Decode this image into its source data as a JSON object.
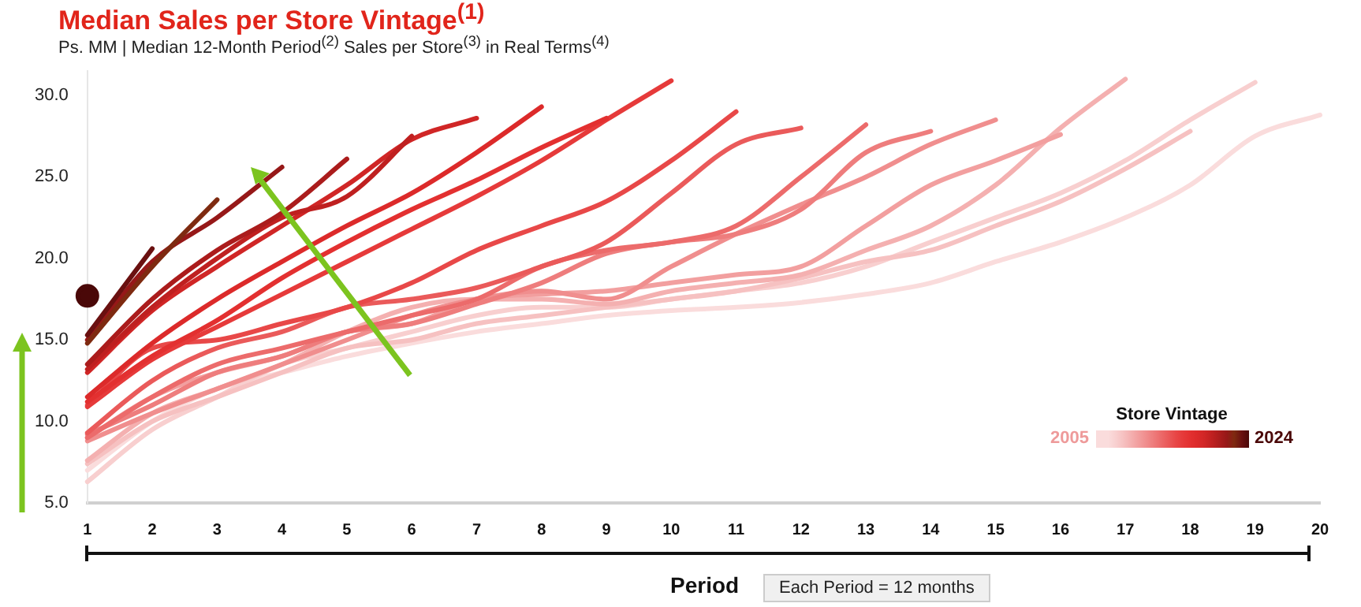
{
  "chart_data": {
    "type": "line",
    "title": "Median Sales per Store Vintage$^{(1)}$",
    "subtitle": "Ps. MM | Median 12-Month Period$^{(2)}$ Sales per Store$^{(3)}$ in Real Terms$^{(4)}$",
    "xlabel": "Period",
    "annotations": [
      "Each Period = 12 months"
    ],
    "legend_title": "Store Vintage",
    "xlim": [
      1,
      20
    ],
    "xticks": [
      1,
      2,
      3,
      4,
      5,
      6,
      7,
      8,
      9,
      10,
      11,
      12,
      13,
      14,
      15,
      16,
      17,
      18,
      19,
      20
    ],
    "ylim": [
      5,
      31.5
    ],
    "yticks": [
      {
        "value": 5,
        "label": "5.0"
      },
      {
        "value": 10,
        "label": "10.0"
      },
      {
        "value": 15,
        "label": "15.0"
      },
      {
        "value": 20,
        "label": "20.0"
      },
      {
        "value": 25,
        "label": "25.0"
      },
      {
        "value": 30,
        "label": "30.0"
      }
    ],
    "grid": false,
    "legend": "bottom right",
    "marker": "none",
    "series": [
      {
        "name": "2005",
        "color": "#fadcdc",
        "x": [
          1,
          2,
          3,
          4,
          5,
          6,
          7,
          8,
          9,
          10,
          11,
          12,
          13,
          14,
          15,
          16,
          17,
          18,
          19,
          20
        ],
        "values": [
          7.0,
          10.0,
          12.0,
          13.0,
          14.0,
          14.8,
          15.5,
          16.0,
          16.5,
          16.8,
          17.0,
          17.3,
          17.8,
          18.5,
          19.8,
          21.0,
          22.5,
          24.5,
          27.5,
          28.8
        ]
      },
      {
        "color": "#f8cfcf",
        "x": [
          1,
          2,
          3,
          4,
          5,
          6,
          7,
          8,
          9,
          10,
          11,
          12,
          13,
          14,
          15,
          16,
          17,
          18,
          19
        ],
        "values": [
          6.3,
          9.5,
          11.5,
          13.5,
          14.5,
          15.5,
          16.5,
          17.0,
          17.0,
          17.5,
          18.0,
          18.5,
          19.5,
          21.0,
          22.5,
          24.0,
          26.0,
          28.5,
          30.8
        ]
      },
      {
        "color": "#f6c1c1",
        "x": [
          1,
          2,
          3,
          4,
          5,
          6,
          7,
          8,
          9,
          10,
          11,
          12,
          13,
          14,
          15,
          16,
          17,
          18
        ],
        "values": [
          7.4,
          10.0,
          11.5,
          13.0,
          14.5,
          15.0,
          16.0,
          16.5,
          17.0,
          17.5,
          18.0,
          18.8,
          19.8,
          20.5,
          22.0,
          23.5,
          25.5,
          27.8
        ]
      },
      {
        "color": "#f4b0b0",
        "x": [
          1,
          2,
          3,
          4,
          5,
          6,
          7,
          8,
          9,
          10,
          11,
          12,
          13,
          14,
          15,
          16,
          17
        ],
        "values": [
          7.6,
          10.5,
          12.0,
          13.5,
          15.5,
          17.0,
          17.5,
          17.5,
          17.2,
          18.0,
          18.5,
          19.0,
          20.5,
          22.0,
          24.5,
          28.0,
          31.0
        ]
      },
      {
        "color": "#f29f9f",
        "x": [
          1,
          2,
          3,
          4,
          5,
          6,
          7,
          8,
          9,
          10,
          11,
          12,
          13,
          14,
          15,
          16
        ],
        "values": [
          9.0,
          11.5,
          13.0,
          14.0,
          15.5,
          16.0,
          17.5,
          17.8,
          18.0,
          18.5,
          19.0,
          19.5,
          22.0,
          24.5,
          26.0,
          27.6
        ]
      },
      {
        "color": "#f08e8e",
        "x": [
          1,
          2,
          3,
          4,
          5,
          6,
          7,
          8,
          9,
          10,
          11,
          12,
          13,
          14,
          15
        ],
        "values": [
          8.8,
          10.5,
          12.0,
          13.5,
          15.0,
          16.5,
          17.5,
          18.0,
          17.5,
          19.5,
          21.5,
          23.3,
          25.0,
          27.0,
          28.5
        ]
      },
      {
        "color": "#ee7d7d",
        "x": [
          1,
          2,
          3,
          4,
          5,
          6,
          7,
          8,
          9,
          10,
          11,
          12,
          13,
          14
        ],
        "values": [
          9.2,
          11.0,
          13.0,
          14.0,
          15.5,
          16.0,
          17.2,
          18.5,
          20.3,
          21.0,
          21.5,
          23.0,
          26.5,
          27.8
        ]
      },
      {
        "color": "#ec6b6b",
        "x": [
          1,
          2,
          3,
          4,
          5,
          6,
          7,
          8,
          9,
          10,
          11,
          12,
          13
        ],
        "values": [
          9.0,
          11.5,
          13.5,
          14.5,
          15.5,
          16.5,
          17.5,
          19.5,
          20.5,
          21.0,
          22.0,
          25.0,
          28.2
        ]
      },
      {
        "color": "#ea5a5a",
        "x": [
          1,
          2,
          3,
          4,
          5,
          6,
          7,
          8,
          9,
          10,
          11,
          12
        ],
        "values": [
          9.3,
          12.5,
          14.5,
          15.5,
          17.0,
          17.5,
          18.2,
          19.5,
          21.0,
          24.0,
          27.0,
          28.0
        ]
      },
      {
        "color": "#e84848",
        "x": [
          1,
          2,
          3,
          4,
          5,
          6,
          7,
          8,
          9,
          10,
          11
        ],
        "values": [
          11.0,
          14.5,
          15.0,
          16.0,
          17.0,
          18.5,
          20.5,
          22.0,
          23.5,
          26.0,
          29.0
        ]
      },
      {
        "color": "#e63a3a",
        "x": [
          1,
          2,
          3,
          4,
          5,
          6,
          7,
          8,
          9,
          10
        ],
        "values": [
          10.9,
          13.8,
          15.8,
          17.8,
          19.8,
          21.8,
          23.8,
          26.0,
          28.5,
          30.9
        ]
      },
      {
        "color": "#e33030",
        "x": [
          1,
          2,
          3,
          4,
          5,
          6,
          7,
          8,
          9
        ],
        "values": [
          11.2,
          14.0,
          16.2,
          18.8,
          21.0,
          23.0,
          24.8,
          26.8,
          28.6
        ]
      },
      {
        "color": "#dc2a2a",
        "x": [
          1,
          2,
          3,
          4,
          5,
          6,
          7,
          8
        ],
        "values": [
          11.5,
          14.8,
          17.5,
          19.8,
          22.0,
          24.0,
          26.5,
          29.3
        ]
      },
      {
        "color": "#d02626",
        "x": [
          1,
          2,
          3,
          4,
          5,
          6,
          7
        ],
        "values": [
          13.0,
          16.8,
          19.5,
          22.0,
          24.5,
          27.3,
          28.6
        ]
      },
      {
        "color": "#bf2020",
        "x": [
          1,
          2,
          3,
          4,
          5,
          6
        ],
        "values": [
          13.2,
          17.0,
          20.0,
          22.5,
          23.8,
          27.5
        ]
      },
      {
        "color": "#ab1c1c",
        "x": [
          1,
          2,
          3,
          4,
          5
        ],
        "values": [
          13.5,
          17.5,
          20.5,
          22.8,
          26.1
        ]
      },
      {
        "color": "#961818",
        "x": [
          1,
          2,
          3,
          4
        ],
        "values": [
          15.0,
          19.8,
          22.5,
          25.6
        ]
      },
      {
        "color": "#7e2a10",
        "x": [
          1,
          2,
          3
        ],
        "values": [
          14.8,
          19.5,
          23.6
        ]
      },
      {
        "color": "#6a1010",
        "x": [
          1,
          2
        ],
        "values": [
          15.3,
          20.6
        ]
      },
      {
        "name": "2024",
        "color": "#4a0808",
        "x": [
          1
        ],
        "values": [
          17.7
        ],
        "marker": "circle"
      }
    ]
  }
}
